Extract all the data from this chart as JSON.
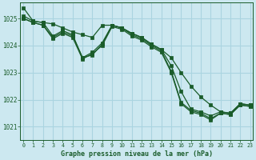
{
  "background_color": "#cce8f0",
  "plot_bg_color": "#cce8f0",
  "grid_color": "#aad4e0",
  "line_color": "#1a5c2a",
  "marker_color": "#1a5c2a",
  "title": "Graphe pression niveau de la mer (hPa)",
  "ylim": [
    1020.5,
    1025.6
  ],
  "xlim": [
    -0.3,
    23.3
  ],
  "yticks": [
    1021,
    1022,
    1023,
    1024,
    1025
  ],
  "xtick_labels": [
    "0",
    "1",
    "2",
    "3",
    "4",
    "5",
    "6",
    "7",
    "8",
    "9",
    "10",
    "11",
    "12",
    "13",
    "14",
    "15",
    "16",
    "17",
    "18",
    "19",
    "20",
    "21",
    "22",
    "23"
  ],
  "series": [
    [
      1025.4,
      1024.9,
      1024.85,
      1024.8,
      1024.65,
      1024.5,
      1024.4,
      1024.3,
      1024.75,
      1024.75,
      1024.65,
      1024.45,
      1024.3,
      1024.05,
      1023.85,
      1023.55,
      1023.0,
      1022.5,
      1022.1,
      1021.8,
      1021.55,
      1021.5,
      1021.85,
      1021.8
    ],
    [
      1025.1,
      1024.9,
      1024.85,
      1024.35,
      1024.55,
      1024.4,
      1023.55,
      1023.65,
      1024.05,
      1024.75,
      1024.65,
      1024.45,
      1024.3,
      1024.05,
      1023.85,
      1023.25,
      1022.3,
      1021.65,
      1021.55,
      1021.4,
      1021.55,
      1021.5,
      1021.85,
      1021.8
    ],
    [
      1025.0,
      1024.85,
      1024.75,
      1024.3,
      1024.5,
      1024.35,
      1023.55,
      1023.75,
      1024.1,
      1024.75,
      1024.65,
      1024.4,
      1024.25,
      1024.0,
      1023.8,
      1023.05,
      1021.9,
      1021.6,
      1021.5,
      1021.3,
      1021.5,
      1021.45,
      1021.8,
      1021.75
    ],
    [
      1025.0,
      1024.85,
      1024.75,
      1024.25,
      1024.45,
      1024.3,
      1023.5,
      1023.7,
      1024.0,
      1024.7,
      1024.6,
      1024.35,
      1024.2,
      1023.95,
      1023.75,
      1023.0,
      1021.85,
      1021.55,
      1021.45,
      1021.25,
      1021.5,
      1021.45,
      1021.8,
      1021.75
    ]
  ]
}
